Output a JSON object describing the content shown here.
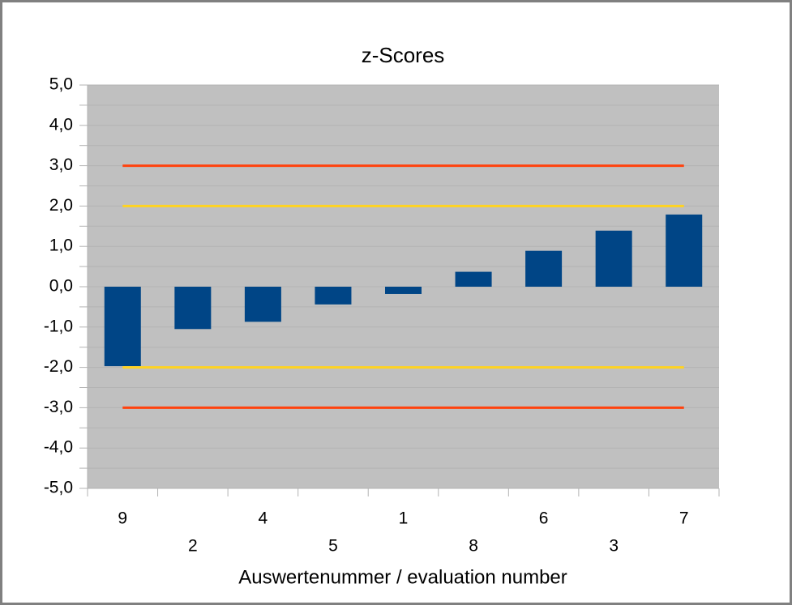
{
  "chart_data": {
    "type": "bar",
    "title": "z-Scores",
    "x_label": "Auswertenummer / evaluation number",
    "categories": [
      "9",
      "2",
      "4",
      "5",
      "1",
      "8",
      "6",
      "3",
      "7"
    ],
    "series": [
      {
        "type": "bar",
        "color": "#004586",
        "values": [
          -1.97,
          -1.05,
          -0.87,
          -0.44,
          -0.18,
          0.37,
          0.89,
          1.39,
          1.79
        ]
      },
      {
        "type": "line",
        "color": "#ff420e",
        "values": [
          3,
          3,
          3,
          3,
          3,
          3,
          3,
          3,
          3
        ]
      },
      {
        "type": "line",
        "color": "#ffd320",
        "values": [
          2,
          2,
          2,
          2,
          2,
          2,
          2,
          2,
          2
        ]
      },
      {
        "type": "line",
        "color": "#ffd320",
        "values": [
          -2,
          -2,
          -2,
          -2,
          -2,
          -2,
          -2,
          -2,
          -2
        ]
      },
      {
        "type": "line",
        "color": "#ff420e",
        "values": [
          -3,
          -3,
          -3,
          -3,
          -3,
          -3,
          -3,
          -3,
          -3
        ]
      }
    ],
    "ylim": [
      -5,
      5
    ],
    "yticks": [
      {
        "value": -5,
        "label": "-5,0"
      },
      {
        "value": -4,
        "label": "-4,0"
      },
      {
        "value": -3,
        "label": "-3,0"
      },
      {
        "value": -2,
        "label": "-2,0"
      },
      {
        "value": -1,
        "label": "-1,0"
      },
      {
        "value": 0,
        "label": "0,0"
      },
      {
        "value": 1,
        "label": "1,0"
      },
      {
        "value": 2,
        "label": "2,0"
      },
      {
        "value": 3,
        "label": "3,0"
      },
      {
        "value": 4,
        "label": "4,0"
      },
      {
        "value": 5,
        "label": "5,0"
      }
    ],
    "grid": true,
    "plot_background": "#c0c0c0"
  }
}
